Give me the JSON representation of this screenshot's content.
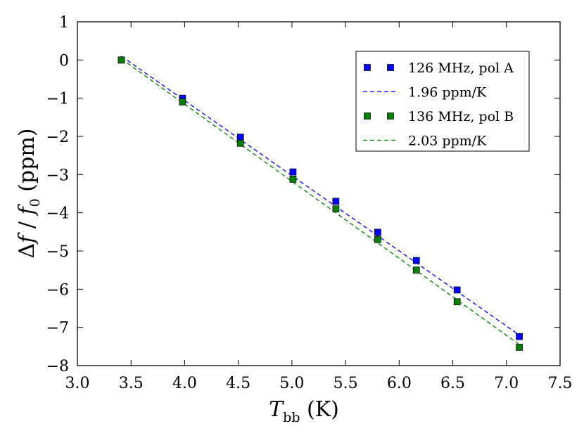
{
  "chart_data": {
    "type": "scatter",
    "xlabel": {
      "main": "T",
      "sub": "bb",
      "unit": " (K)"
    },
    "ylabel": {
      "delta": "Δ",
      "f": "f",
      "slash": " / ",
      "f0": "f",
      "sub": "0",
      "unit": " (ppm)"
    },
    "xlim": [
      3.0,
      7.5
    ],
    "ylim": [
      -8,
      1
    ],
    "xticks": [
      3.0,
      3.5,
      4.0,
      4.5,
      5.0,
      5.5,
      6.0,
      6.5,
      7.0,
      7.5
    ],
    "xtick_labels": [
      "3.0",
      "3.5",
      "4.0",
      "4.5",
      "5.0",
      "5.5",
      "6.0",
      "6.5",
      "7.0",
      "7.5"
    ],
    "yticks": [
      1,
      0,
      -1,
      -2,
      -3,
      -4,
      -5,
      -6,
      -7,
      -8
    ],
    "ytick_labels": [
      "1",
      "0",
      "−1",
      "−2",
      "−3",
      "−4",
      "−5",
      "−6",
      "−7",
      "−8"
    ],
    "grid": false,
    "legend_position": "top-right",
    "series": [
      {
        "name": "126 MHz,  pol A",
        "marker": "square",
        "color": "#0000ff",
        "x": [
          3.41,
          3.98,
          4.52,
          5.01,
          5.41,
          5.8,
          6.16,
          6.54,
          7.12
        ],
        "y": [
          0.0,
          -1.0,
          -2.02,
          -2.93,
          -3.7,
          -4.51,
          -5.25,
          -6.02,
          -7.24
        ]
      },
      {
        "name": "1.96 ppm/K",
        "style": "dashed-line",
        "color": "#0000ff",
        "x": [
          3.41,
          7.12
        ],
        "y": [
          0.1,
          -7.2
        ]
      },
      {
        "name": "136 MHz,  pol B",
        "marker": "square",
        "color": "#007f00",
        "x": [
          3.41,
          3.98,
          4.52,
          5.01,
          5.41,
          5.8,
          6.16,
          6.54,
          7.12
        ],
        "y": [
          0.0,
          -1.1,
          -2.18,
          -3.12,
          -3.9,
          -4.7,
          -5.5,
          -6.33,
          -7.52
        ]
      },
      {
        "name": "2.03 ppm/K",
        "style": "dashed-line",
        "color": "#007f00",
        "x": [
          3.41,
          7.12
        ],
        "y": [
          0.03,
          -7.45
        ]
      }
    ]
  }
}
